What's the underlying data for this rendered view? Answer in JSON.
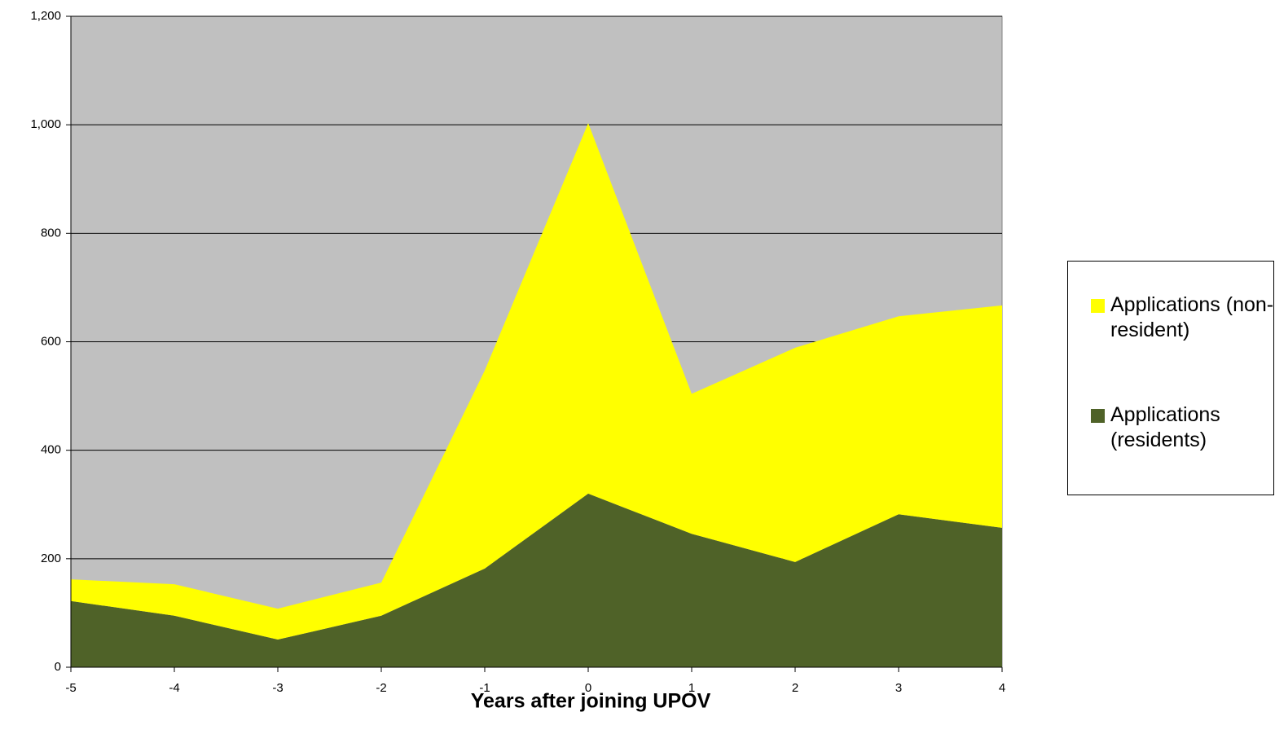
{
  "chart_data": {
    "type": "stacked_area",
    "xlabel": "Years after joining UPOV",
    "x": [
      -5,
      -4,
      -3,
      -2,
      -1,
      0,
      1,
      2,
      3,
      4
    ],
    "xlim": [
      -5,
      4
    ],
    "xticks": [
      -5,
      -4,
      -3,
      -2,
      -1,
      0,
      1,
      2,
      3,
      4
    ],
    "ylim": [
      0,
      1200
    ],
    "yticks": [
      0,
      200,
      400,
      600,
      800,
      {
        "value": 1000,
        "label": "1,000"
      },
      {
        "value": 1200,
        "label": "1,200"
      }
    ],
    "grid": true,
    "plot_background": "#c0c0c0",
    "legend": "right",
    "series": [
      {
        "name": "Applications (residents)",
        "color": "#4f6228",
        "values": [
          122,
          95,
          51,
          95,
          182,
          320,
          246,
          194,
          282,
          257
        ]
      },
      {
        "name": "Applications (non-resident)",
        "color": "#ffff00",
        "values": [
          40,
          58,
          57,
          61,
          365,
          683,
          258,
          395,
          365,
          410
        ]
      }
    ]
  }
}
